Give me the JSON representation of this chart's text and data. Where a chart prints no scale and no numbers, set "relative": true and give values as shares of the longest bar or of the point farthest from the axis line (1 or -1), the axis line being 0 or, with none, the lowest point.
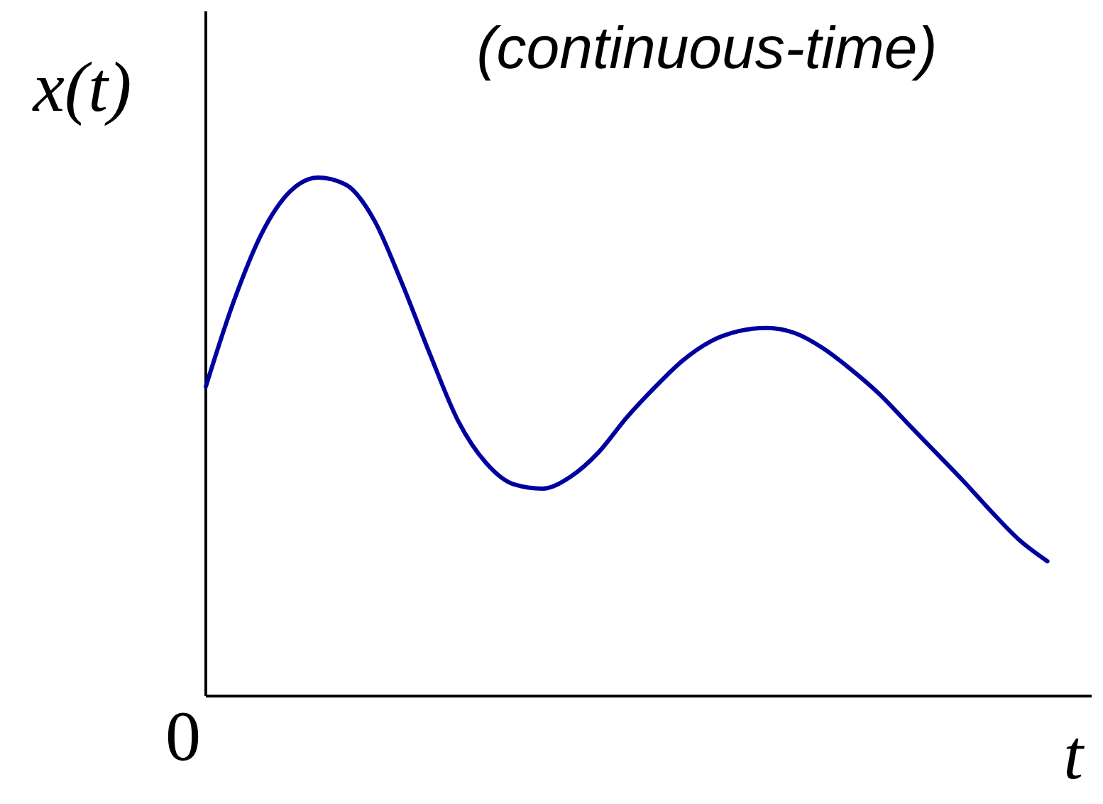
{
  "chart_data": {
    "type": "line",
    "title": "(continuous-time)",
    "xlabel": "t",
    "ylabel": "x(t)",
    "annotations": [
      "0"
    ],
    "relative": true,
    "categories": [
      null,
      null,
      null,
      null,
      null,
      null,
      null,
      null,
      null,
      null,
      null,
      null,
      null,
      null,
      null,
      null,
      null,
      null,
      null,
      null,
      null,
      null,
      null,
      null,
      null,
      null,
      null,
      null,
      null,
      null,
      null
    ],
    "series": [
      {
        "color": "#00009f",
        "values": [
          0.597,
          0.762,
          0.893,
          0.973,
          1,
          0.986,
          0.918,
          0.795,
          0.658,
          0.53,
          0.449,
          0.408,
          0.4,
          0.423,
          0.47,
          0.537,
          0.595,
          0.647,
          0.684,
          0.704,
          0.71,
          0.7,
          0.671,
          0.63,
          0.583,
          0.527,
          0.471,
          0.415,
          0.356,
          0.301,
          0.26
        ]
      }
    ]
  }
}
